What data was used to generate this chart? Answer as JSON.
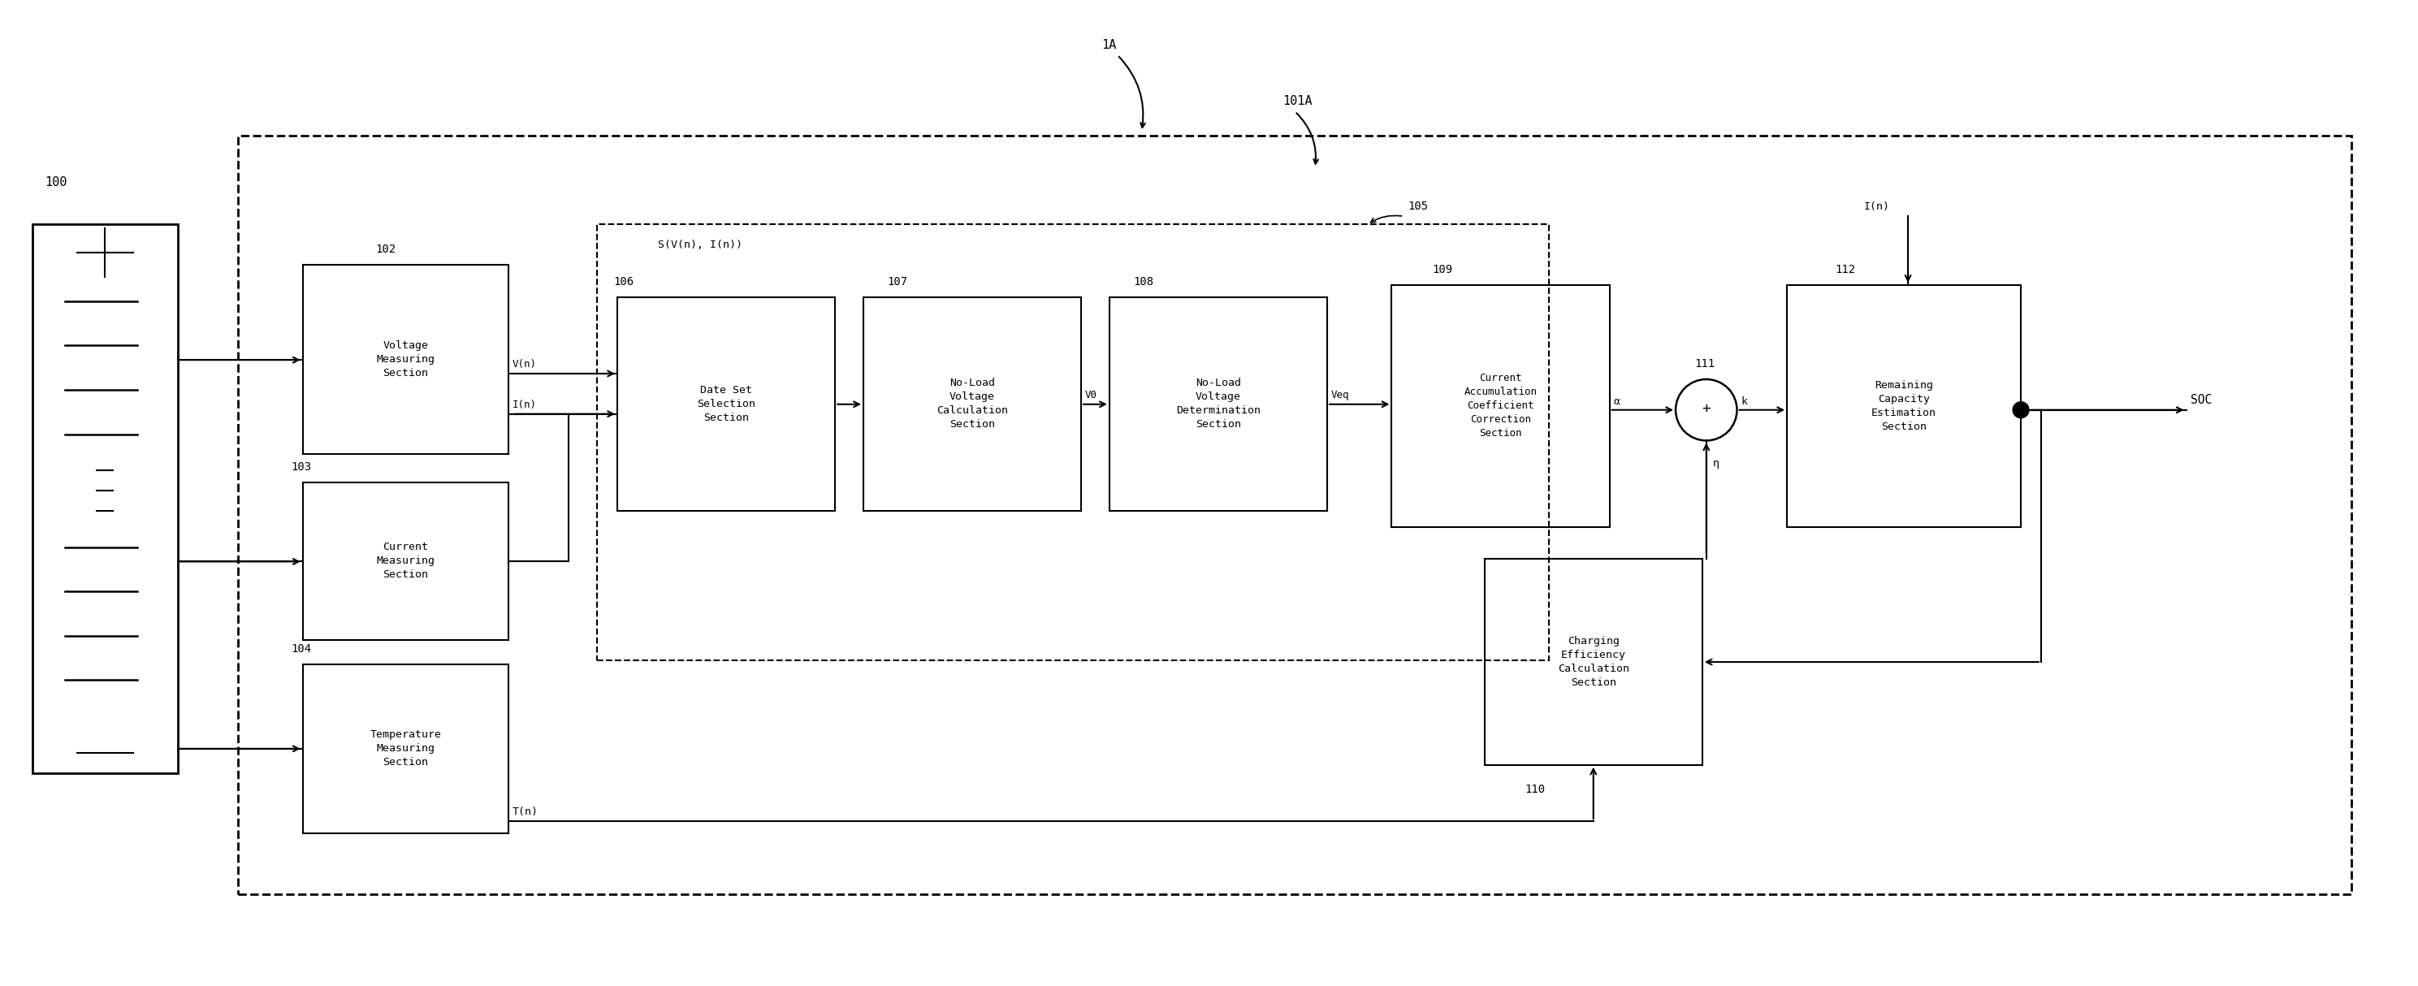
{
  "fig_width": 29.77,
  "fig_height": 12.14,
  "bg_color": "#ffffff",
  "line_color": "#000000",
  "label_1A": "1A",
  "label_101A": "101A",
  "label_100": "100",
  "label_102": "102",
  "label_103": "103",
  "label_104": "104",
  "label_105": "105",
  "label_106": "106",
  "label_107": "107",
  "label_108": "108",
  "label_109": "109",
  "label_110": "110",
  "label_111": "111",
  "label_112": "112",
  "box_voltage": "Voltage\nMeasuring\nSection",
  "box_current": "Current\nMeasuring\nSection",
  "box_temp": "Temperature\nMeasuring\nSection",
  "box_dataset": "Date Set\nSelection\nSection",
  "box_noload_calc": "No-Load\nVoltage\nCalculation\nSection",
  "box_noload_det": "No-Load\nVoltage\nDetermination\nSection",
  "box_current_acc": "Current\nAccumulation\nCoefficient\nCorrection\nSection",
  "box_remaining": "Remaining\nCapacity\nEstimation\nSection",
  "box_charging": "Charging\nEfficiency\nCalculation\nSection",
  "signal_Vn": "V(n)",
  "signal_In": "I(n)",
  "signal_SVnIn": "S(V(n), I(n))",
  "signal_V0": "V0",
  "signal_Veq": "Veq",
  "signal_alpha": "α",
  "signal_k": "k",
  "signal_eta": "η",
  "signal_Tn": "T(n)",
  "signal_In2": "I(n)",
  "signal_SOC": "SOC"
}
